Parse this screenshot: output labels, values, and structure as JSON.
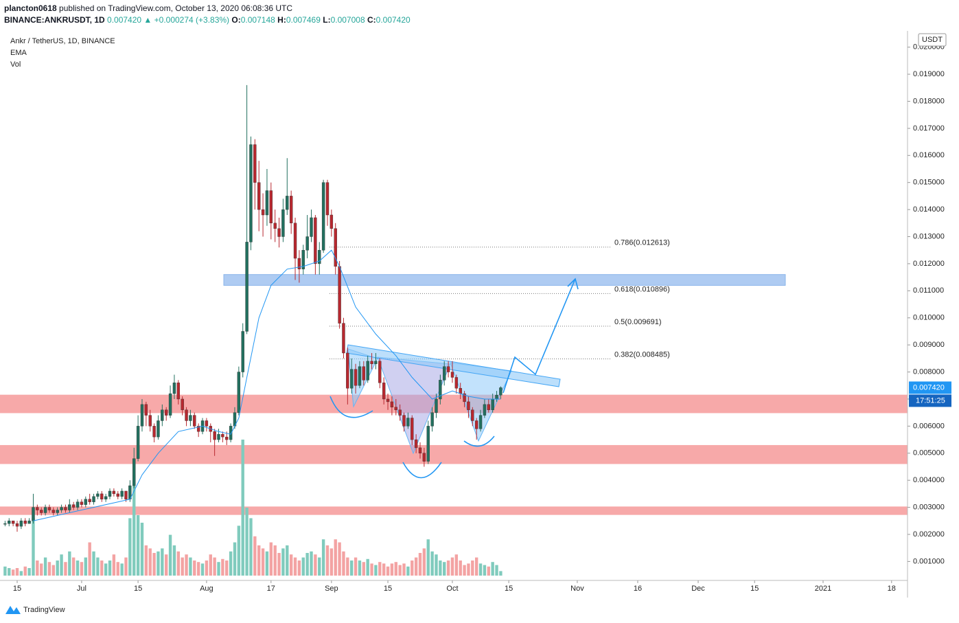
{
  "header": {
    "user": "plancton0618",
    "published": "published on TradingView.com, October 13, 2020 06:08:36 UTC",
    "symbol": "BINANCE:ANKRUSDT, 1D",
    "quote": "0.007420",
    "change": "▲ +0.000274 (+3.83%)",
    "fields": [
      {
        "k": "O:",
        "v": "0.007148"
      },
      {
        "k": "H:",
        "v": "0.007469"
      },
      {
        "k": "L:",
        "v": "0.007008"
      },
      {
        "k": "C:",
        "v": "0.007420"
      }
    ]
  },
  "footer": {
    "brand": "TradingView"
  },
  "chart_data": {
    "type": "candlestick",
    "title": "Ankr / TetherUS, 1D, BINANCE",
    "indicators": [
      "EMA",
      "Vol"
    ],
    "currency": "USDT",
    "up_color": "#22705f",
    "down_color": "#b8282f",
    "vol_up_color": "#80cbbd",
    "vol_down_color": "#f3a3a3",
    "last_label": {
      "value": 0.00742,
      "label": "0.007420"
    },
    "countdown": "17:51:25",
    "ylim": [
      0.0003,
      0.0206
    ],
    "vlim": [
      0,
      100
    ],
    "yticks": [
      {
        "value": 0.001,
        "label": "0.001000"
      },
      {
        "value": 0.002,
        "label": "0.002000"
      },
      {
        "value": 0.003,
        "label": "0.003000"
      },
      {
        "value": 0.004,
        "label": "0.004000"
      },
      {
        "value": 0.005,
        "label": "0.005000"
      },
      {
        "value": 0.006,
        "label": "0.006000"
      },
      {
        "value": 0.007,
        "label": "0.007000"
      },
      {
        "value": 0.008,
        "label": "0.008000"
      },
      {
        "value": 0.009,
        "label": "0.009000"
      },
      {
        "value": 0.01,
        "label": "0.010000"
      },
      {
        "value": 0.011,
        "label": "0.011000"
      },
      {
        "value": 0.012,
        "label": "0.012000"
      },
      {
        "value": 0.013,
        "label": "0.013000"
      },
      {
        "value": 0.014,
        "label": "0.014000"
      },
      {
        "value": 0.015,
        "label": "0.015000"
      },
      {
        "value": 0.016,
        "label": "0.016000"
      },
      {
        "value": 0.017,
        "label": "0.017000"
      },
      {
        "value": 0.018,
        "label": "0.018000"
      },
      {
        "value": 0.019,
        "label": "0.019000"
      },
      {
        "value": 0.02,
        "label": "0.020000"
      }
    ],
    "xticks": [
      {
        "value": "2020-06-15",
        "label": "15"
      },
      {
        "value": "2020-07-01",
        "label": "Jul"
      },
      {
        "value": "2020-07-15",
        "label": "15"
      },
      {
        "value": "2020-08-01",
        "label": "Aug"
      },
      {
        "value": "2020-08-17",
        "label": "17"
      },
      {
        "value": "2020-09-01",
        "label": "Sep"
      },
      {
        "value": "2020-09-15",
        "label": "15"
      },
      {
        "value": "2020-10-01",
        "label": "Oct"
      },
      {
        "value": "2020-10-15",
        "label": "15"
      },
      {
        "value": "2020-11-01",
        "label": "Nov"
      },
      {
        "value": "2020-11-16",
        "label": "16"
      },
      {
        "value": "2020-12-01",
        "label": "Dec"
      },
      {
        "value": "2020-12-15",
        "label": "15"
      },
      {
        "value": "2021-01-01",
        "label": "2021"
      },
      {
        "value": "2021-01-18",
        "label": "18"
      }
    ],
    "x": [
      "2020-06-12",
      "2020-06-13",
      "2020-06-14",
      "2020-06-15",
      "2020-06-16",
      "2020-06-17",
      "2020-06-18",
      "2020-06-19",
      "2020-06-20",
      "2020-06-21",
      "2020-06-22",
      "2020-06-23",
      "2020-06-24",
      "2020-06-25",
      "2020-06-26",
      "2020-06-27",
      "2020-06-28",
      "2020-06-29",
      "2020-06-30",
      "2020-07-01",
      "2020-07-02",
      "2020-07-03",
      "2020-07-04",
      "2020-07-05",
      "2020-07-06",
      "2020-07-07",
      "2020-07-08",
      "2020-07-09",
      "2020-07-10",
      "2020-07-11",
      "2020-07-12",
      "2020-07-13",
      "2020-07-14",
      "2020-07-15",
      "2020-07-16",
      "2020-07-17",
      "2020-07-18",
      "2020-07-19",
      "2020-07-20",
      "2020-07-21",
      "2020-07-22",
      "2020-07-23",
      "2020-07-24",
      "2020-07-25",
      "2020-07-26",
      "2020-07-27",
      "2020-07-28",
      "2020-07-29",
      "2020-07-30",
      "2020-07-31",
      "2020-08-01",
      "2020-08-02",
      "2020-08-03",
      "2020-08-04",
      "2020-08-05",
      "2020-08-06",
      "2020-08-07",
      "2020-08-08",
      "2020-08-09",
      "2020-08-10",
      "2020-08-11",
      "2020-08-12",
      "2020-08-13",
      "2020-08-14",
      "2020-08-15",
      "2020-08-16",
      "2020-08-17",
      "2020-08-18",
      "2020-08-19",
      "2020-08-20",
      "2020-08-21",
      "2020-08-22",
      "2020-08-23",
      "2020-08-24",
      "2020-08-25",
      "2020-08-26",
      "2020-08-27",
      "2020-08-28",
      "2020-08-29",
      "2020-08-30",
      "2020-08-31",
      "2020-09-01",
      "2020-09-02",
      "2020-09-03",
      "2020-09-04",
      "2020-09-05",
      "2020-09-06",
      "2020-09-07",
      "2020-09-08",
      "2020-09-09",
      "2020-09-10",
      "2020-09-11",
      "2020-09-12",
      "2020-09-13",
      "2020-09-14",
      "2020-09-15",
      "2020-09-16",
      "2020-09-17",
      "2020-09-18",
      "2020-09-19",
      "2020-09-20",
      "2020-09-21",
      "2020-09-22",
      "2020-09-23",
      "2020-09-24",
      "2020-09-25",
      "2020-09-26",
      "2020-09-27",
      "2020-09-28",
      "2020-09-29",
      "2020-09-30",
      "2020-10-01",
      "2020-10-02",
      "2020-10-03",
      "2020-10-04",
      "2020-10-05",
      "2020-10-06",
      "2020-10-07",
      "2020-10-08",
      "2020-10-09",
      "2020-10-10",
      "2020-10-11",
      "2020-10-12",
      "2020-10-13"
    ],
    "ohlc": [
      [
        0.0024,
        0.0025,
        0.0023,
        0.0024
      ],
      [
        0.0024,
        0.0026,
        0.0023,
        0.0025
      ],
      [
        0.0025,
        0.0025,
        0.0023,
        0.0024
      ],
      [
        0.0024,
        0.0025,
        0.0021,
        0.0023
      ],
      [
        0.0023,
        0.0026,
        0.0022,
        0.0025
      ],
      [
        0.0025,
        0.0026,
        0.0023,
        0.0024
      ],
      [
        0.0024,
        0.0026,
        0.0024,
        0.0025
      ],
      [
        0.0025,
        0.0035,
        0.0024,
        0.003
      ],
      [
        0.003,
        0.0031,
        0.0027,
        0.0029
      ],
      [
        0.0029,
        0.003,
        0.0027,
        0.0028
      ],
      [
        0.0028,
        0.0031,
        0.0027,
        0.003
      ],
      [
        0.003,
        0.0031,
        0.0028,
        0.0029
      ],
      [
        0.0029,
        0.003,
        0.0027,
        0.0028
      ],
      [
        0.0028,
        0.003,
        0.0027,
        0.0029
      ],
      [
        0.0029,
        0.0031,
        0.0028,
        0.003
      ],
      [
        0.003,
        0.0031,
        0.0028,
        0.0029
      ],
      [
        0.0029,
        0.0033,
        0.0028,
        0.0031
      ],
      [
        0.0031,
        0.0032,
        0.0029,
        0.003
      ],
      [
        0.003,
        0.0033,
        0.0029,
        0.0032
      ],
      [
        0.0032,
        0.0033,
        0.003,
        0.0031
      ],
      [
        0.0031,
        0.0034,
        0.003,
        0.0033
      ],
      [
        0.0033,
        0.0035,
        0.0031,
        0.0032
      ],
      [
        0.0032,
        0.0035,
        0.0031,
        0.0034
      ],
      [
        0.0034,
        0.0036,
        0.0033,
        0.0035
      ],
      [
        0.0035,
        0.0036,
        0.0032,
        0.0033
      ],
      [
        0.0033,
        0.0035,
        0.0032,
        0.0034
      ],
      [
        0.0034,
        0.0037,
        0.0033,
        0.0036
      ],
      [
        0.0036,
        0.0037,
        0.0034,
        0.0035
      ],
      [
        0.0035,
        0.0036,
        0.0033,
        0.0034
      ],
      [
        0.0034,
        0.0037,
        0.0033,
        0.0036
      ],
      [
        0.0036,
        0.0036,
        0.0032,
        0.0033
      ],
      [
        0.0033,
        0.004,
        0.0032,
        0.0038
      ],
      [
        0.0038,
        0.0052,
        0.0037,
        0.0048
      ],
      [
        0.0048,
        0.0064,
        0.0047,
        0.006
      ],
      [
        0.006,
        0.007,
        0.0058,
        0.0068
      ],
      [
        0.0068,
        0.0069,
        0.006,
        0.0064
      ],
      [
        0.0064,
        0.0066,
        0.0058,
        0.006
      ],
      [
        0.006,
        0.0061,
        0.0054,
        0.0056
      ],
      [
        0.0056,
        0.0064,
        0.0055,
        0.0062
      ],
      [
        0.0062,
        0.0068,
        0.006,
        0.0066
      ],
      [
        0.0066,
        0.0067,
        0.0062,
        0.0064
      ],
      [
        0.0064,
        0.0075,
        0.0063,
        0.0072
      ],
      [
        0.0072,
        0.0079,
        0.007,
        0.0076
      ],
      [
        0.0076,
        0.0077,
        0.0068,
        0.007
      ],
      [
        0.007,
        0.0071,
        0.0064,
        0.0066
      ],
      [
        0.0066,
        0.0067,
        0.006,
        0.0062
      ],
      [
        0.0062,
        0.0066,
        0.006,
        0.0064
      ],
      [
        0.0064,
        0.0065,
        0.0059,
        0.006
      ],
      [
        0.006,
        0.0061,
        0.0056,
        0.0058
      ],
      [
        0.0058,
        0.0063,
        0.0057,
        0.0062
      ],
      [
        0.0062,
        0.0063,
        0.0058,
        0.006
      ],
      [
        0.006,
        0.0061,
        0.0054,
        0.0058
      ],
      [
        0.0058,
        0.0059,
        0.0049,
        0.0055
      ],
      [
        0.0055,
        0.0059,
        0.0054,
        0.0057
      ],
      [
        0.0057,
        0.0058,
        0.0054,
        0.0056
      ],
      [
        0.0056,
        0.0058,
        0.0053,
        0.0055
      ],
      [
        0.0055,
        0.0061,
        0.0054,
        0.006
      ],
      [
        0.006,
        0.0067,
        0.0059,
        0.0065
      ],
      [
        0.0065,
        0.0082,
        0.0064,
        0.008
      ],
      [
        0.008,
        0.0098,
        0.0078,
        0.0095
      ],
      [
        0.0095,
        0.0186,
        0.0094,
        0.0128
      ],
      [
        0.0128,
        0.0167,
        0.0125,
        0.0164
      ],
      [
        0.0164,
        0.0166,
        0.014,
        0.015
      ],
      [
        0.015,
        0.0158,
        0.0132,
        0.014
      ],
      [
        0.014,
        0.0146,
        0.013,
        0.0138
      ],
      [
        0.0138,
        0.0155,
        0.0134,
        0.0147
      ],
      [
        0.0147,
        0.015,
        0.0129,
        0.0135
      ],
      [
        0.0135,
        0.014,
        0.0128,
        0.0133
      ],
      [
        0.0133,
        0.0137,
        0.0126,
        0.013
      ],
      [
        0.013,
        0.0144,
        0.0128,
        0.014
      ],
      [
        0.014,
        0.0159,
        0.0138,
        0.0145
      ],
      [
        0.0145,
        0.0147,
        0.0131,
        0.0135
      ],
      [
        0.0135,
        0.0137,
        0.0114,
        0.0122
      ],
      [
        0.0122,
        0.0125,
        0.0113,
        0.0118
      ],
      [
        0.0118,
        0.0127,
        0.0116,
        0.0125
      ],
      [
        0.0125,
        0.0138,
        0.0122,
        0.013
      ],
      [
        0.013,
        0.014,
        0.0128,
        0.0137
      ],
      [
        0.0137,
        0.0138,
        0.0116,
        0.012
      ],
      [
        0.012,
        0.0128,
        0.0116,
        0.0125
      ],
      [
        0.0125,
        0.0151,
        0.0124,
        0.015
      ],
      [
        0.015,
        0.0151,
        0.0134,
        0.0138
      ],
      [
        0.0138,
        0.014,
        0.013,
        0.0133
      ],
      [
        0.0133,
        0.0135,
        0.0116,
        0.0119
      ],
      [
        0.0119,
        0.0121,
        0.0096,
        0.0098
      ],
      [
        0.0098,
        0.01,
        0.0085,
        0.0087
      ],
      [
        0.0087,
        0.0089,
        0.0068,
        0.0074
      ],
      [
        0.0074,
        0.0085,
        0.0072,
        0.0081
      ],
      [
        0.0081,
        0.0083,
        0.0072,
        0.0075
      ],
      [
        0.0075,
        0.0084,
        0.0074,
        0.0082
      ],
      [
        0.0082,
        0.0084,
        0.0075,
        0.0077
      ],
      [
        0.0077,
        0.0086,
        0.0076,
        0.0084
      ],
      [
        0.0084,
        0.0087,
        0.0081,
        0.0083
      ],
      [
        0.0083,
        0.0087,
        0.0081,
        0.0084
      ],
      [
        0.0084,
        0.0085,
        0.0074,
        0.0076
      ],
      [
        0.0076,
        0.0078,
        0.0068,
        0.007
      ],
      [
        0.007,
        0.0072,
        0.0066,
        0.0069
      ],
      [
        0.0069,
        0.0071,
        0.0064,
        0.0067
      ],
      [
        0.0067,
        0.007,
        0.0064,
        0.0066
      ],
      [
        0.0066,
        0.0068,
        0.0062,
        0.0064
      ],
      [
        0.0064,
        0.0065,
        0.0058,
        0.006
      ],
      [
        0.006,
        0.0065,
        0.0059,
        0.0063
      ],
      [
        0.0063,
        0.0064,
        0.0053,
        0.0055
      ],
      [
        0.0055,
        0.0057,
        0.005,
        0.0052
      ],
      [
        0.0052,
        0.0054,
        0.0048,
        0.005
      ],
      [
        0.005,
        0.0052,
        0.0045,
        0.0047
      ],
      [
        0.0047,
        0.0062,
        0.0046,
        0.006
      ],
      [
        0.006,
        0.0067,
        0.0058,
        0.0065
      ],
      [
        0.0065,
        0.0072,
        0.0063,
        0.007
      ],
      [
        0.007,
        0.0079,
        0.0068,
        0.0077
      ],
      [
        0.0077,
        0.0084,
        0.0075,
        0.0082
      ],
      [
        0.0082,
        0.0084,
        0.0078,
        0.008
      ],
      [
        0.008,
        0.0084,
        0.0076,
        0.0078
      ],
      [
        0.0078,
        0.0079,
        0.0072,
        0.0074
      ],
      [
        0.0074,
        0.0076,
        0.007,
        0.0072
      ],
      [
        0.0072,
        0.0073,
        0.0067,
        0.0069
      ],
      [
        0.0069,
        0.0071,
        0.0063,
        0.0066
      ],
      [
        0.0066,
        0.0067,
        0.006,
        0.0062
      ],
      [
        0.0062,
        0.0063,
        0.0055,
        0.0059
      ],
      [
        0.0059,
        0.0066,
        0.0058,
        0.0064
      ],
      [
        0.0064,
        0.007,
        0.0063,
        0.0068
      ],
      [
        0.0068,
        0.007,
        0.0065,
        0.0066
      ],
      [
        0.0066,
        0.0072,
        0.0065,
        0.007
      ],
      [
        0.007,
        0.0073,
        0.0069,
        0.007148
      ],
      [
        0.007148,
        0.007469,
        0.007008,
        0.00742
      ]
    ],
    "volume": [
      6,
      5,
      4,
      5,
      3,
      6,
      5,
      38,
      10,
      8,
      12,
      9,
      7,
      10,
      14,
      9,
      16,
      12,
      10,
      9,
      12,
      22,
      16,
      12,
      10,
      8,
      10,
      14,
      9,
      8,
      12,
      38,
      67,
      40,
      35,
      20,
      18,
      15,
      16,
      18,
      14,
      27,
      20,
      16,
      12,
      14,
      12,
      10,
      9,
      8,
      10,
      14,
      12,
      9,
      11,
      10,
      16,
      22,
      33,
      90,
      45,
      38,
      26,
      20,
      18,
      16,
      22,
      20,
      15,
      18,
      20,
      14,
      12,
      10,
      12,
      15,
      16,
      14,
      12,
      24,
      20,
      18,
      24,
      22,
      16,
      12,
      10,
      12,
      10,
      9,
      11,
      8,
      7,
      9,
      8,
      6,
      8,
      9,
      7,
      8,
      6,
      10,
      12,
      15,
      18,
      24,
      16,
      14,
      10,
      9,
      10,
      12,
      14,
      10,
      7,
      8,
      10,
      12,
      8,
      7,
      6,
      9,
      7,
      3
    ],
    "ema": {
      "color": "#2196f3",
      "x": [
        "2020-06-19",
        "2020-07-01",
        "2020-07-10",
        "2020-07-13",
        "2020-07-16",
        "2020-07-20",
        "2020-07-25",
        "2020-07-31",
        "2020-08-04",
        "2020-08-07",
        "2020-08-09",
        "2020-08-11",
        "2020-08-14",
        "2020-08-17",
        "2020-08-21",
        "2020-08-25",
        "2020-08-29",
        "2020-09-01",
        "2020-09-03",
        "2020-09-07",
        "2020-09-12",
        "2020-09-17",
        "2020-09-21",
        "2020-09-26",
        "2020-10-01",
        "2020-10-05",
        "2020-10-09",
        "2020-10-13"
      ],
      "values": [
        0.0025,
        0.0029,
        0.0032,
        0.0033,
        0.0042,
        0.005,
        0.0058,
        0.006,
        0.0058,
        0.0057,
        0.0063,
        0.0078,
        0.01,
        0.0112,
        0.0118,
        0.0119,
        0.0121,
        0.0125,
        0.0119,
        0.0104,
        0.0094,
        0.0086,
        0.0078,
        0.007,
        0.0073,
        0.0071,
        0.007,
        0.007
      ]
    },
    "zones": [
      {
        "low": 0.00648,
        "high": 0.00716,
        "color": "#f7a9a9"
      },
      {
        "low": 0.0046,
        "high": 0.0053,
        "color": "#f7a9a9"
      },
      {
        "low": 0.00272,
        "high": 0.00303,
        "color": "#f7a9a9"
      },
      {
        "low": 0.0112,
        "high": 0.0116,
        "color": "#aecbf2"
      }
    ],
    "fib": [
      {
        "label": "0.786(0.012613)",
        "value": 0.012613
      },
      {
        "label": "0.618(0.010896)",
        "value": 0.010896
      },
      {
        "label": "0.5(0.009691)",
        "value": 0.009691
      },
      {
        "label": "0.382(0.008485)",
        "value": 0.008485
      }
    ]
  }
}
